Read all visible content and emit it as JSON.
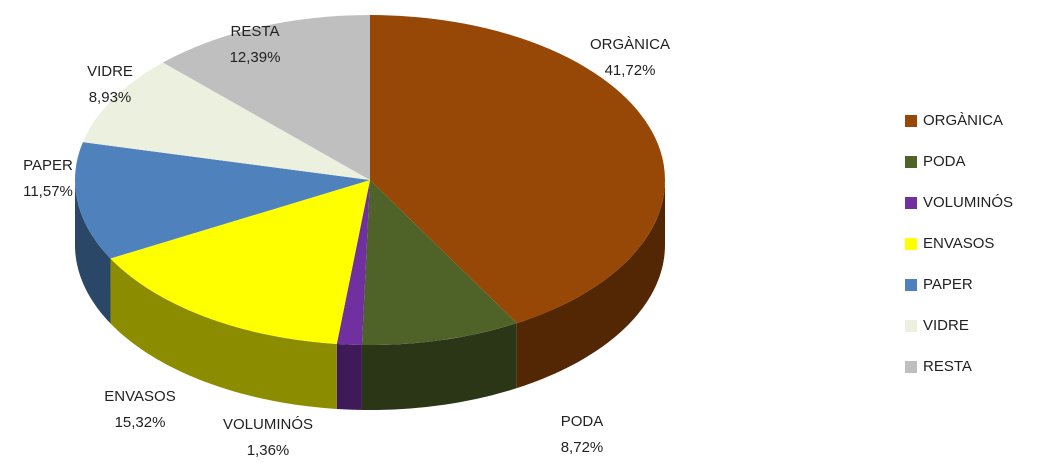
{
  "chart_data": {
    "type": "pie",
    "categories": [
      "ORGÀNICA",
      "PODA",
      "VOLUMINÓS",
      "ENVASOS",
      "PAPER",
      "VIDRE",
      "RESTA"
    ],
    "values": [
      41.72,
      8.72,
      1.36,
      15.32,
      11.57,
      8.93,
      12.39
    ],
    "value_labels": [
      "41,72%",
      "8,72%",
      "1,36%",
      "15,32%",
      "11,57%",
      "8,93%",
      "12,39%"
    ],
    "colors": [
      "#974706",
      "#4f6228",
      "#7030a0",
      "#ffff00",
      "#4f81bd",
      "#ebf1de",
      "#bfbfbf"
    ],
    "legend": "right"
  }
}
